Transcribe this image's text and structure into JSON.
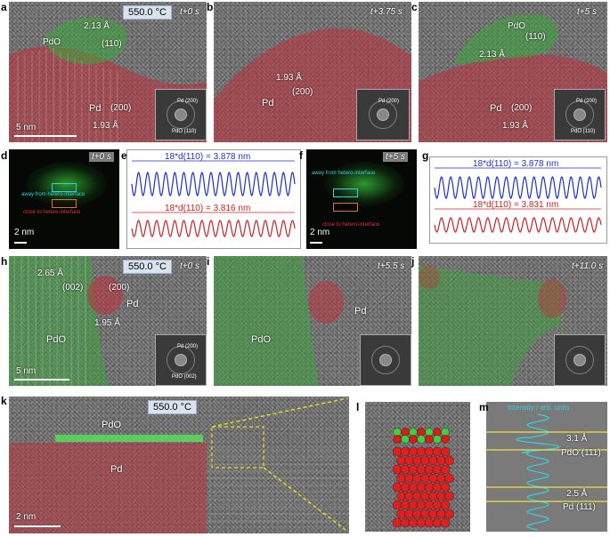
{
  "panels": {
    "a": {
      "label": "a",
      "temp": "550.0 °C",
      "time": "t+0 s",
      "pdo": "PdO",
      "pdo_spacing": "2.13 Å",
      "pdo_plane": "(110)",
      "pd": "Pd",
      "pd_plane": "(200)",
      "pd_spacing": "1.93 Å",
      "scale": "5 nm",
      "fft_pd": "Pd (200)",
      "fft_pdo": "PdO (110)"
    },
    "b": {
      "label": "b",
      "time": "t+3.75 s",
      "pd_spacing": "1.93 Å",
      "pd_plane": "(200)",
      "pd": "Pd",
      "fft_pd": "Pd (200)"
    },
    "c": {
      "label": "c",
      "time": "t+5 s",
      "pdo": "PdO",
      "pdo_spacing": "2.13 Å",
      "pdo_plane": "(110)",
      "pd": "Pd",
      "pd_plane": "(200)",
      "pd_spacing": "1.93 Å",
      "fft_pd": "Pd (200)",
      "fft_pdo": "PdO (110)"
    },
    "d": {
      "label": "d",
      "time": "t+0 s",
      "away": "away from hetero-interface",
      "close": "close to hetero-interface",
      "scale": "2 nm"
    },
    "e": {
      "label": "e",
      "top": "18*d(110) = 3.878 nm",
      "bottom": "18*d(110) = 3.816 nm"
    },
    "f": {
      "label": "f",
      "time": "t+5 s",
      "away": "away from hetero-interface",
      "close": "close to hetero-interface",
      "scale": "2 nm"
    },
    "g": {
      "label": "g",
      "top": "18*d(110) = 3.878 nm",
      "bottom": "18*d(110) = 3.831 nm"
    },
    "h": {
      "label": "h",
      "temp": "550.0 °C",
      "time": "t+0 s",
      "pdo_spacing": "2.65 Å",
      "pdo_plane": "(002)",
      "pd_plane": "(200)",
      "pd": "Pd",
      "pd_spacing": "1.95 Å",
      "pdo": "PdO",
      "scale": "5 nm",
      "fft_pd": "Pd (200)",
      "fft_pdo": "PdO (002)"
    },
    "i": {
      "label": "i",
      "time": "t+5.5 s",
      "pdo": "PdO",
      "pd": "Pd"
    },
    "j": {
      "label": "j",
      "time": "t+11.0 s"
    },
    "k": {
      "label": "k",
      "temp": "550.0 °C",
      "pdo": "PdO",
      "pd": "Pd",
      "scale": "2 nm"
    },
    "l": {
      "label": "l"
    },
    "m": {
      "label": "m",
      "intensity": "Intensity / arb. units",
      "pdo_spacing": "3.1 Å",
      "pdo_plane": "PdO (111)",
      "pd_spacing": "2.5 Å",
      "pd_plane": "Pd (111)"
    }
  },
  "colors": {
    "pd_overlay": "#c0303a",
    "pdo_overlay": "#3aa83a",
    "blue_trace": "#1f2fd0",
    "red_trace": "#d02020",
    "arrow": "#e8e020"
  }
}
